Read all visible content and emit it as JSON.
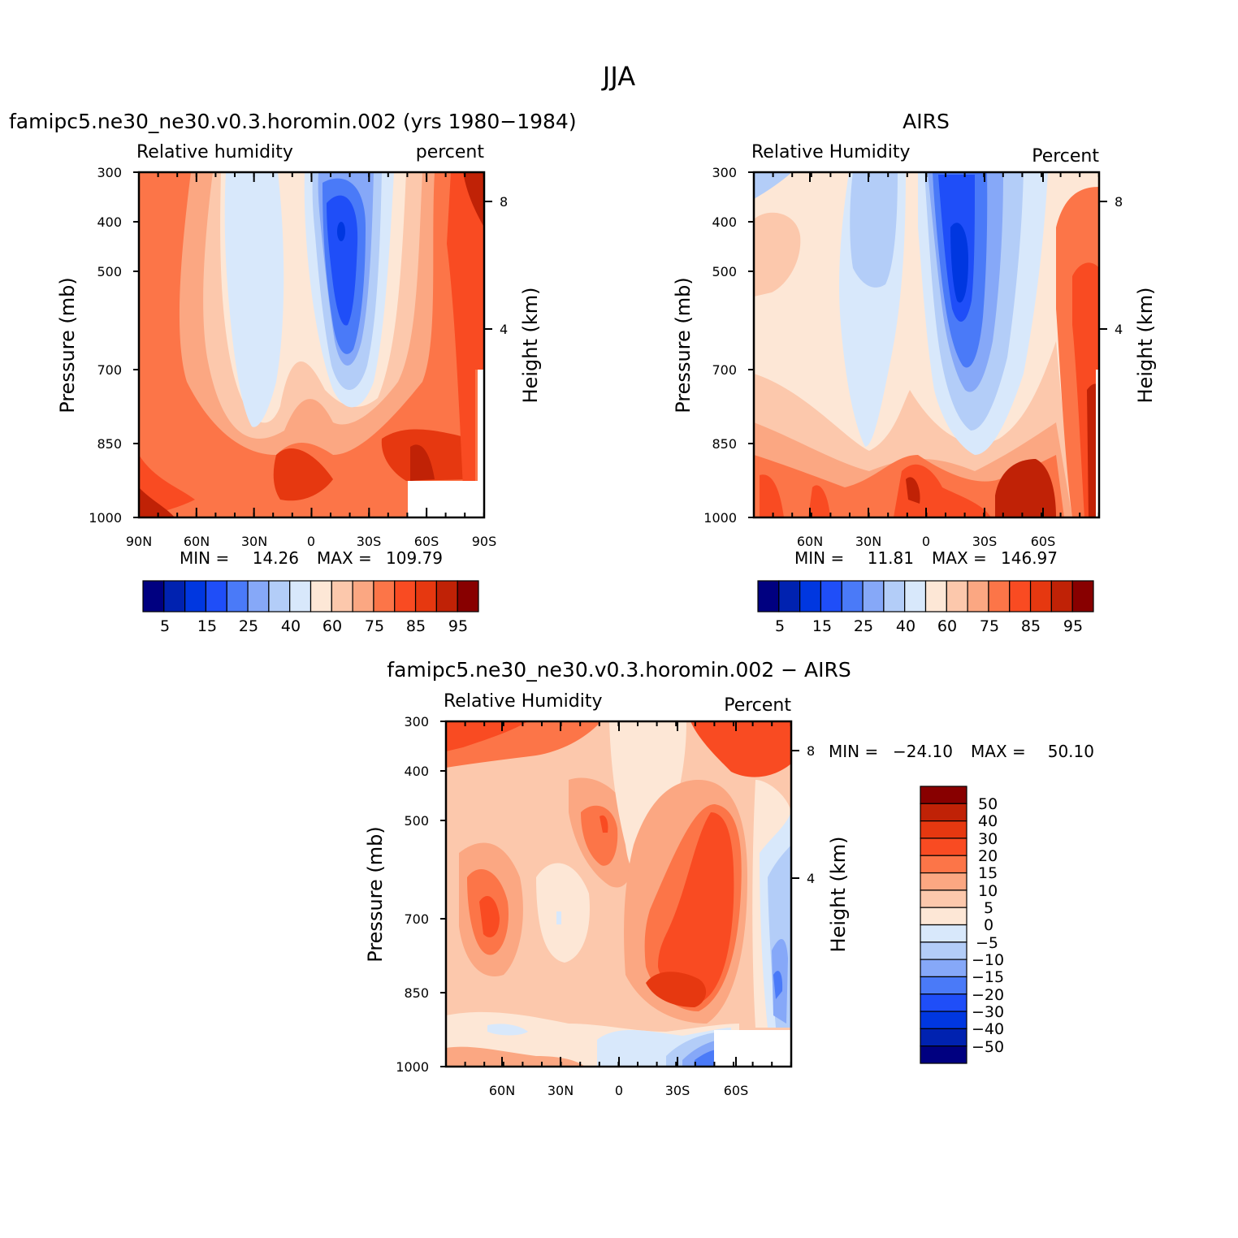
{
  "main_title": "JJA",
  "colors": {
    "rh_levels": [
      "#000080",
      "#0022b0",
      "#0037e0",
      "#1f4ef8",
      "#4a7af8",
      "#86a8f8",
      "#b3cdf8",
      "#d8e8fb",
      "#fde7d6",
      "#fcc8ac",
      "#fba782",
      "#fc7548",
      "#f94b22",
      "#e63810",
      "#c02206",
      "#880000"
    ],
    "diff_levels_top_to_bottom": [
      "#880000",
      "#c02206",
      "#e63810",
      "#f94b22",
      "#fc7548",
      "#fba782",
      "#fcc8ac",
      "#fde7d6",
      "#d8e8fb",
      "#b3cdf8",
      "#86a8f8",
      "#4a7af8",
      "#1f4ef8",
      "#0037e0",
      "#0022b0",
      "#000080"
    ]
  },
  "chart_data": [
    {
      "type": "heatmap",
      "title": "famipc5.ne30_ne30.v0.3.horomin.002 (yrs 1980−1984)",
      "left_label": "Relative humidity",
      "right_label": "percent",
      "ylabel": "Pressure (mb)",
      "right_axis_label": "Height (km)",
      "y_ticks": [
        "300",
        "400",
        "500",
        "700",
        "850",
        "1000"
      ],
      "right_ticks": [
        "8",
        "4"
      ],
      "x_ticks": [
        "90N",
        "60N",
        "30N",
        "0",
        "30S",
        "60S",
        "90S"
      ],
      "min_label": "MIN =",
      "min_value": "14.26",
      "max_label": "MAX =",
      "max_value": "109.79",
      "colorbar_labels": [
        "5",
        "15",
        "25",
        "40",
        "60",
        "75",
        "85",
        "95"
      ]
    },
    {
      "type": "heatmap",
      "title": "AIRS",
      "left_label": "Relative Humidity",
      "right_label": "Percent",
      "ylabel": "Pressure (mb)",
      "right_axis_label": "Height (km)",
      "y_ticks": [
        "300",
        "400",
        "500",
        "700",
        "850",
        "1000"
      ],
      "right_ticks": [
        "8",
        "4"
      ],
      "x_ticks": [
        "60N",
        "30N",
        "0",
        "30S",
        "60S"
      ],
      "min_label": "MIN =",
      "min_value": "11.81",
      "max_label": "MAX =",
      "max_value": "146.97",
      "colorbar_labels": [
        "5",
        "15",
        "25",
        "40",
        "60",
        "75",
        "85",
        "95"
      ]
    },
    {
      "type": "heatmap",
      "title": "famipc5.ne30_ne30.v0.3.horomin.002 − AIRS",
      "left_label": "Relative Humidity",
      "right_label": "Percent",
      "ylabel": "Pressure (mb)",
      "right_axis_label": "Height (km)",
      "y_ticks": [
        "300",
        "400",
        "500",
        "700",
        "850",
        "1000"
      ],
      "right_ticks": [
        "8",
        "4"
      ],
      "x_ticks": [
        "60N",
        "30N",
        "0",
        "30S",
        "60S"
      ],
      "min_label": "MIN =",
      "min_value": "−24.10",
      "max_label": "MAX =",
      "max_value": "50.10",
      "colorbar_labels": [
        "50",
        "40",
        "30",
        "20",
        "15",
        "10",
        "5",
        "0",
        "−5",
        "−10",
        "−15",
        "−20",
        "−30",
        "−40",
        "−50"
      ]
    }
  ]
}
